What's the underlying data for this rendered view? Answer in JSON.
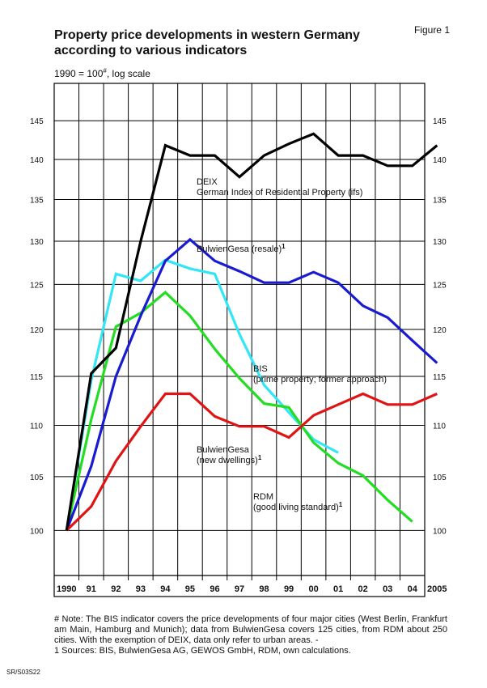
{
  "figure_label": "Figure 1",
  "title_line1": "Property price developments in western Germany",
  "title_line2": "according to various indicators",
  "subtitle_main": "1990 = 100",
  "subtitle_sup": "#",
  "subtitle_rest": ", log scale",
  "note_lines": [
    "# Note: The BIS indicator covers the price developments of four major cities (West Berlin, Frankfurt am Main, Hamburg and Munich); data from BulwienGesa covers 125 cities, from RDM about 250 cities. With the exemption of DEIX, data only refer to urban areas. -",
    "1 Sources: BIS, BulwienGesa AG, GEWOS GmbH, RDM, own calculations."
  ],
  "doc_code": "SR/S03S22",
  "colors": {
    "deix": "#000000",
    "bulwien_resale": "#1a1ad0",
    "bis": "#33e6f5",
    "bulwien_new": "#22dd22",
    "rdm": "#e01414",
    "grid": "#000000"
  },
  "chart_data": {
    "type": "line",
    "scale": "log",
    "ylim": [
      96,
      150
    ],
    "yticks": [
      100,
      105,
      110,
      115,
      120,
      125,
      130,
      135,
      140,
      145
    ],
    "grid": true,
    "x": [
      1990,
      1991,
      1992,
      1993,
      1994,
      1995,
      1996,
      1997,
      1998,
      1999,
      2000,
      2001,
      2002,
      2003,
      2004,
      2005
    ],
    "xtick_labels": [
      "1990",
      "91",
      "92",
      "93",
      "94",
      "95",
      "96",
      "97",
      "98",
      "99",
      "00",
      "01",
      "02",
      "03",
      "04",
      "2005"
    ],
    "series": [
      {
        "key": "deix",
        "labels": [
          "DEIX",
          "German Index of Residential Property (ifs)"
        ],
        "label_sup": "",
        "values": [
          100,
          115.3,
          118,
          130,
          141.8,
          140.5,
          140.5,
          137.8,
          140.5,
          142,
          143.3,
          140.5,
          140.5,
          139.2,
          139.2,
          141.8
        ]
      },
      {
        "key": "bulwien_resale",
        "labels": [
          "BulwienGesa (resale)"
        ],
        "label_sup": "1",
        "values": [
          100,
          106,
          115,
          121.5,
          127.7,
          130.2,
          127.7,
          126.5,
          125.2,
          125.2,
          126.4,
          125.2,
          122.6,
          121.3,
          118.8,
          116.4
        ]
      },
      {
        "key": "bis",
        "labels": [
          "BIS",
          "(prime property; former approach)"
        ],
        "label_sup": "",
        "values": [
          100,
          114.6,
          126.2,
          125.4,
          127.8,
          126.8,
          126.2,
          119.5,
          114.1,
          111.3,
          108.6,
          107.3,
          null,
          null,
          null,
          null
        ]
      },
      {
        "key": "bulwien_new",
        "labels": [
          "BulwienGesa",
          "(new dwellings)"
        ],
        "label_sup": "1",
        "values": [
          100,
          110.6,
          120.3,
          121.8,
          124.1,
          121.5,
          117.9,
          114.8,
          112.2,
          111.8,
          108.3,
          106.3,
          105.1,
          102.8,
          100.8,
          null
        ]
      },
      {
        "key": "rdm",
        "labels": [
          "RDM",
          "(good living standard)"
        ],
        "label_sup": "1",
        "values": [
          100,
          102.2,
          106.5,
          109.9,
          113.2,
          113.2,
          110.9,
          109.9,
          109.9,
          108.8,
          111,
          112.1,
          113.2,
          112.1,
          112.1,
          113.2
        ]
      }
    ]
  }
}
